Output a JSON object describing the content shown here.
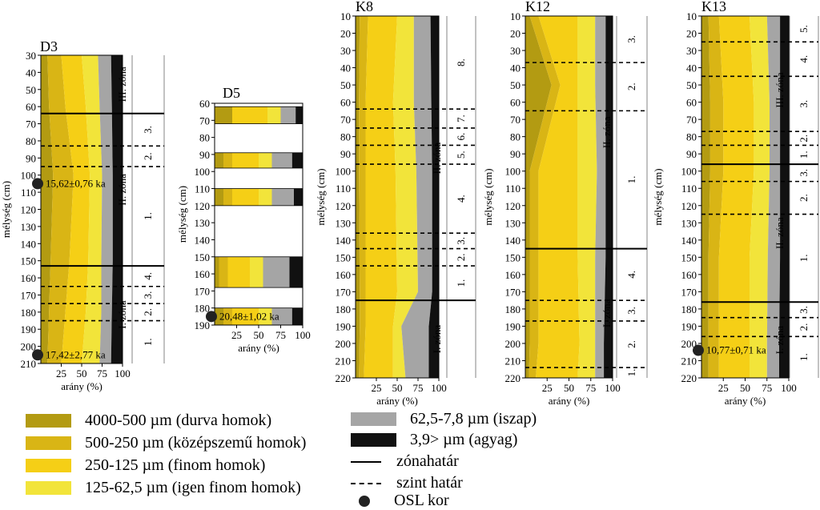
{
  "colors": {
    "durva": "#b39b12",
    "kozepszemu": "#d9b515",
    "finom": "#f5cf16",
    "igen_finom": "#f2e43a",
    "iszap": "#a5a5a5",
    "agyag": "#111111"
  },
  "legend": {
    "items": [
      {
        "label": "4000-500 µm (durva homok)",
        "color_key": "durva"
      },
      {
        "label": "500-250 µm (középszemű homok)",
        "color_key": "kozepszemu"
      },
      {
        "label": "250-125 µm (finom homok)",
        "color_key": "finom"
      },
      {
        "label": "125-62,5 µm (igen finom homok)",
        "color_key": "igen_finom"
      },
      {
        "label": "62,5-7,8 µm (iszap)",
        "color_key": "iszap"
      },
      {
        "label": "3,9> µm (agyag)",
        "color_key": "agyag"
      }
    ],
    "zone_boundary": "zónahatár",
    "level_boundary": "szint határ",
    "osl": "OSL kor"
  },
  "chart_data": [
    {
      "type": "area",
      "title": "D3",
      "ylabel": "mélység (cm)",
      "xlabel": "arány (%)",
      "ylim": [
        30,
        210
      ],
      "yticks": [
        30,
        40,
        50,
        60,
        70,
        80,
        90,
        100,
        110,
        120,
        130,
        140,
        150,
        160,
        170,
        180,
        190,
        200,
        210
      ],
      "xticks": [
        "25",
        "50",
        "75",
        "100"
      ],
      "cumulative_boundaries": {
        "depth": [
          30,
          60,
          100,
          150,
          180,
          210
        ],
        "durva": [
          8,
          10,
          15,
          12,
          10,
          8
        ],
        "kozepszemu": [
          25,
          30,
          40,
          35,
          30,
          25
        ],
        "finom": [
          50,
          55,
          60,
          58,
          55,
          50
        ],
        "igen_finom": [
          70,
          72,
          75,
          74,
          74,
          72
        ],
        "iszap": [
          86,
          87,
          88,
          88,
          87,
          86
        ],
        "agyag": [
          100,
          100,
          100,
          100,
          100,
          100
        ]
      },
      "zones": [
        {
          "label": "III. zóna",
          "from": 30,
          "to": 64
        },
        {
          "label": "II. zóna",
          "from": 64,
          "to": 153
        },
        {
          "label": "I. zóna",
          "from": 153,
          "to": 210
        }
      ],
      "levels": [
        {
          "label": "3.",
          "from": 64,
          "to": 83
        },
        {
          "label": "2.",
          "from": 83,
          "to": 95
        },
        {
          "label": "1.",
          "from": 95,
          "to": 153
        },
        {
          "label": "4.",
          "from": 153,
          "to": 165
        },
        {
          "label": "3.",
          "from": 165,
          "to": 175
        },
        {
          "label": "2.",
          "from": 175,
          "to": 185
        },
        {
          "label": "1.",
          "from": 185,
          "to": 210
        }
      ],
      "zone_lines": [
        64,
        153
      ],
      "level_lines": [
        83,
        95,
        165,
        175,
        185
      ],
      "osl": [
        {
          "depth": 105,
          "label": "15,62±0,76 ka"
        },
        {
          "depth": 205,
          "label": "17,42±2,77 ka"
        }
      ]
    },
    {
      "type": "bar",
      "title": "D5",
      "ylabel": "mélység (cm)",
      "xlabel": "arány (%)",
      "ylim": [
        60,
        190
      ],
      "yticks": [
        60,
        70,
        80,
        90,
        100,
        110,
        120,
        130,
        140,
        150,
        160,
        170,
        180,
        190
      ],
      "xticks": [
        "25",
        "50",
        "75",
        "100"
      ],
      "samples": [
        {
          "from": 62,
          "to": 72,
          "durva": 20,
          "kozepszemu": 0,
          "finom": 60,
          "igen_finom": 75,
          "iszap": 92,
          "agyag": 100
        },
        {
          "from": 89,
          "to": 98,
          "durva": 10,
          "kozepszemu": 20,
          "finom": 50,
          "igen_finom": 65,
          "iszap": 88,
          "agyag": 100
        },
        {
          "from": 110,
          "to": 120,
          "durva": 10,
          "kozepszemu": 20,
          "finom": 50,
          "igen_finom": 65,
          "iszap": 90,
          "agyag": 100
        },
        {
          "from": 150,
          "to": 168,
          "durva": 5,
          "kozepszemu": 15,
          "finom": 40,
          "igen_finom": 55,
          "iszap": 85,
          "agyag": 100
        },
        {
          "from": 180,
          "to": 190,
          "durva": 10,
          "kozepszemu": 20,
          "finom": 50,
          "igen_finom": 65,
          "iszap": 88,
          "agyag": 100
        }
      ],
      "osl": [
        {
          "depth": 185,
          "label": "20,48±1,02 ka"
        }
      ]
    },
    {
      "type": "area",
      "title": "K8",
      "ylabel": "mélység (cm)",
      "xlabel": "arány (%)",
      "ylim": [
        10,
        220
      ],
      "yticks": [
        10,
        20,
        30,
        40,
        50,
        60,
        70,
        80,
        90,
        100,
        110,
        120,
        130,
        140,
        150,
        160,
        170,
        180,
        190,
        200,
        210,
        220
      ],
      "xticks": [
        "25",
        "50",
        "75",
        "100"
      ],
      "cumulative_boundaries": {
        "depth": [
          10,
          60,
          100,
          170,
          190,
          220
        ],
        "durva": [
          5,
          4,
          4,
          5,
          5,
          4
        ],
        "kozepszemu": [
          15,
          12,
          12,
          12,
          12,
          10
        ],
        "finom": [
          50,
          45,
          48,
          50,
          45,
          45
        ],
        "igen_finom": [
          70,
          70,
          73,
          75,
          55,
          60
        ],
        "iszap": [
          90,
          91,
          92,
          92,
          88,
          88
        ],
        "agyag": [
          100,
          100,
          100,
          100,
          100,
          100
        ]
      },
      "zones": [
        {
          "label": "II. zóna",
          "from": 10,
          "to": 175
        },
        {
          "label": "I. zóna",
          "from": 175,
          "to": 220
        }
      ],
      "levels": [
        {
          "label": "8.",
          "from": 10,
          "to": 64
        },
        {
          "label": "7.",
          "from": 64,
          "to": 75
        },
        {
          "label": "6.",
          "from": 75,
          "to": 85
        },
        {
          "label": "5.",
          "from": 85,
          "to": 96
        },
        {
          "label": "4.",
          "from": 96,
          "to": 136
        },
        {
          "label": "3.",
          "from": 136,
          "to": 145
        },
        {
          "label": "2.",
          "from": 145,
          "to": 155
        },
        {
          "label": "1.",
          "from": 155,
          "to": 175
        }
      ],
      "zone_lines": [
        175
      ],
      "level_lines": [
        64,
        75,
        85,
        96,
        136,
        145,
        155
      ],
      "osl": []
    },
    {
      "type": "area",
      "title": "K12",
      "ylabel": "mélység (cm)",
      "xlabel": "arány (%)",
      "ylim": [
        10,
        220
      ],
      "yticks": [
        10,
        20,
        30,
        40,
        50,
        60,
        70,
        80,
        90,
        100,
        110,
        120,
        130,
        140,
        150,
        160,
        170,
        180,
        190,
        200,
        210,
        220
      ],
      "xticks": [
        "25",
        "50",
        "75",
        "100"
      ],
      "cumulative_boundaries": {
        "depth": [
          10,
          50,
          100,
          150,
          200,
          220
        ],
        "durva": [
          5,
          30,
          5,
          5,
          5,
          4
        ],
        "kozepszemu": [
          15,
          40,
          15,
          15,
          15,
          12
        ],
        "finom": [
          60,
          60,
          60,
          60,
          62,
          60
        ],
        "igen_finom": [
          80,
          80,
          82,
          80,
          80,
          80
        ],
        "iszap": [
          92,
          92,
          92,
          92,
          90,
          90
        ],
        "agyag": [
          100,
          100,
          100,
          100,
          100,
          100
        ]
      },
      "zones": [
        {
          "label": "II. zóna",
          "from": 10,
          "to": 145
        },
        {
          "label": "I. zóna",
          "from": 145,
          "to": 220
        }
      ],
      "levels": [
        {
          "label": "3.",
          "from": 10,
          "to": 37
        },
        {
          "label": "2.",
          "from": 37,
          "to": 65
        },
        {
          "label": "1.",
          "from": 65,
          "to": 145
        },
        {
          "label": "4.",
          "from": 145,
          "to": 175
        },
        {
          "label": "3.",
          "from": 175,
          "to": 187
        },
        {
          "label": "2.",
          "from": 187,
          "to": 214
        },
        {
          "label": "1.",
          "from": 214,
          "to": 220
        }
      ],
      "zone_lines": [
        145
      ],
      "level_lines": [
        37,
        65,
        175,
        187,
        214
      ],
      "osl": []
    },
    {
      "type": "area",
      "title": "K13",
      "ylabel": "mélység (cm)",
      "xlabel": "arány (%)",
      "ylim": [
        10,
        220
      ],
      "yticks": [
        10,
        20,
        30,
        40,
        50,
        60,
        70,
        80,
        90,
        100,
        110,
        120,
        130,
        140,
        150,
        160,
        170,
        180,
        190,
        200,
        210,
        220
      ],
      "xticks": [
        "25",
        "50",
        "75",
        "100"
      ],
      "cumulative_boundaries": {
        "depth": [
          10,
          60,
          100,
          150,
          200,
          220
        ],
        "durva": [
          8,
          10,
          10,
          8,
          8,
          8
        ],
        "kozepszemu": [
          20,
          25,
          25,
          20,
          20,
          20
        ],
        "finom": [
          55,
          60,
          60,
          55,
          55,
          55
        ],
        "igen_finom": [
          75,
          78,
          78,
          76,
          75,
          75
        ],
        "iszap": [
          90,
          90,
          90,
          90,
          89,
          89
        ],
        "agyag": [
          100,
          100,
          100,
          100,
          100,
          100
        ]
      },
      "zones": [
        {
          "label": "III. zóna",
          "from": 10,
          "to": 96
        },
        {
          "label": "II. zóna",
          "from": 96,
          "to": 176
        },
        {
          "label": "I. zóna",
          "from": 176,
          "to": 220
        }
      ],
      "levels": [
        {
          "label": "5.",
          "from": 10,
          "to": 25
        },
        {
          "label": "4.",
          "from": 25,
          "to": 45
        },
        {
          "label": "3.",
          "from": 45,
          "to": 77
        },
        {
          "label": "2.",
          "from": 77,
          "to": 85
        },
        {
          "label": "1.",
          "from": 85,
          "to": 96
        },
        {
          "label": "3.",
          "from": 96,
          "to": 106
        },
        {
          "label": "2.",
          "from": 106,
          "to": 125
        },
        {
          "label": "1.",
          "from": 125,
          "to": 176
        },
        {
          "label": "3.",
          "from": 176,
          "to": 185
        },
        {
          "label": "2.",
          "from": 185,
          "to": 196
        },
        {
          "label": "1.",
          "from": 196,
          "to": 220
        }
      ],
      "zone_lines": [
        96,
        176
      ],
      "level_lines": [
        25,
        45,
        77,
        85,
        106,
        125,
        185,
        196
      ],
      "osl": [
        {
          "depth": 204,
          "label": "10,77±0,71 ka"
        }
      ]
    }
  ]
}
